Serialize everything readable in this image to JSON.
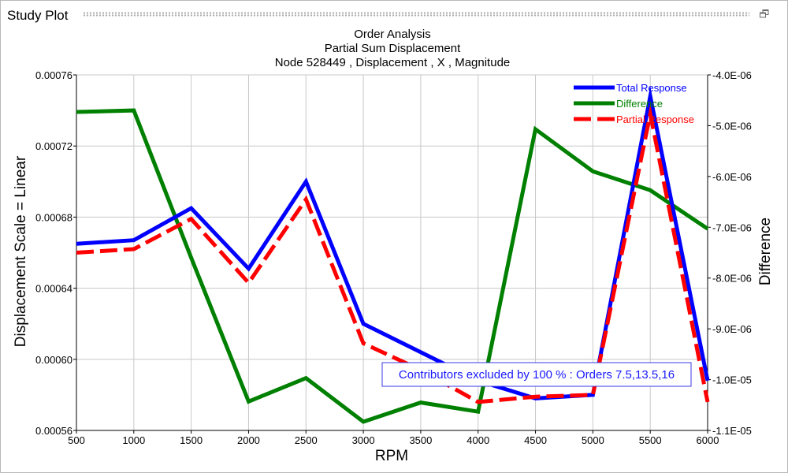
{
  "window": {
    "title": "Study Plot",
    "restore_icon": "restore-window-icon"
  },
  "chart_data": {
    "type": "line",
    "title": [
      "Order Analysis",
      "Partial Sum Displacement",
      "Node 528449 , Displacement , X , Magnitude"
    ],
    "xlabel": "RPM",
    "ylabel": "Displacement Scale = Linear",
    "y2label": "Difference",
    "xlim": [
      500,
      6000
    ],
    "ylim": [
      0.00056,
      0.00076
    ],
    "y2lim": [
      -1.1e-05,
      -4e-06
    ],
    "x_ticks": [
      "500",
      "1000",
      "1500",
      "2000",
      "2500",
      "3000",
      "3500",
      "4000",
      "4500",
      "5000",
      "5500",
      "6000"
    ],
    "y_ticks": [
      "0.00056",
      "0.00060",
      "0.00064",
      "0.00068",
      "0.00072",
      "0.00076"
    ],
    "y2_ticks": [
      "-1.1E-05",
      "-1.0E-05",
      "-9.0E-06",
      "-8.0E-06",
      "-7.0E-06",
      "-6.0E-06",
      "-5.0E-06",
      "-4.0E-06"
    ],
    "grid": true,
    "legend_position": "top-right",
    "x": [
      500,
      1000,
      1500,
      2000,
      2500,
      3000,
      3500,
      4000,
      4500,
      5000,
      5500,
      6000
    ],
    "series": [
      {
        "name": "Total Response",
        "axis": "left",
        "color": "#0000ff",
        "style": "solid",
        "values": [
          0.000665,
          0.000667,
          0.000685,
          0.000651,
          0.0007,
          0.00062,
          0.000604,
          0.000588,
          0.000578,
          0.00058,
          0.000748,
          0.000588
        ]
      },
      {
        "name": "Difference",
        "axis": "right",
        "color": "#008000",
        "style": "solid",
        "values": [
          -4.73e-06,
          -4.7e-06,
          -7.6e-06,
          -1.043e-05,
          -9.97e-06,
          -1.083e-05,
          -1.045e-05,
          -1.063e-05,
          -5.07e-06,
          -5.9e-06,
          -6.27e-06,
          -7.03e-06
        ]
      },
      {
        "name": "Partial Response",
        "axis": "left",
        "color": "#ff0000",
        "style": "dashed",
        "values": [
          0.00066,
          0.000662,
          0.000679,
          0.000643,
          0.00069,
          0.000609,
          0.000594,
          0.000576,
          0.000579,
          0.00058,
          0.000738,
          0.000576
        ]
      }
    ],
    "annotation": "Contributors excluded by 100 % : Orders 7.5,13.5,16"
  }
}
